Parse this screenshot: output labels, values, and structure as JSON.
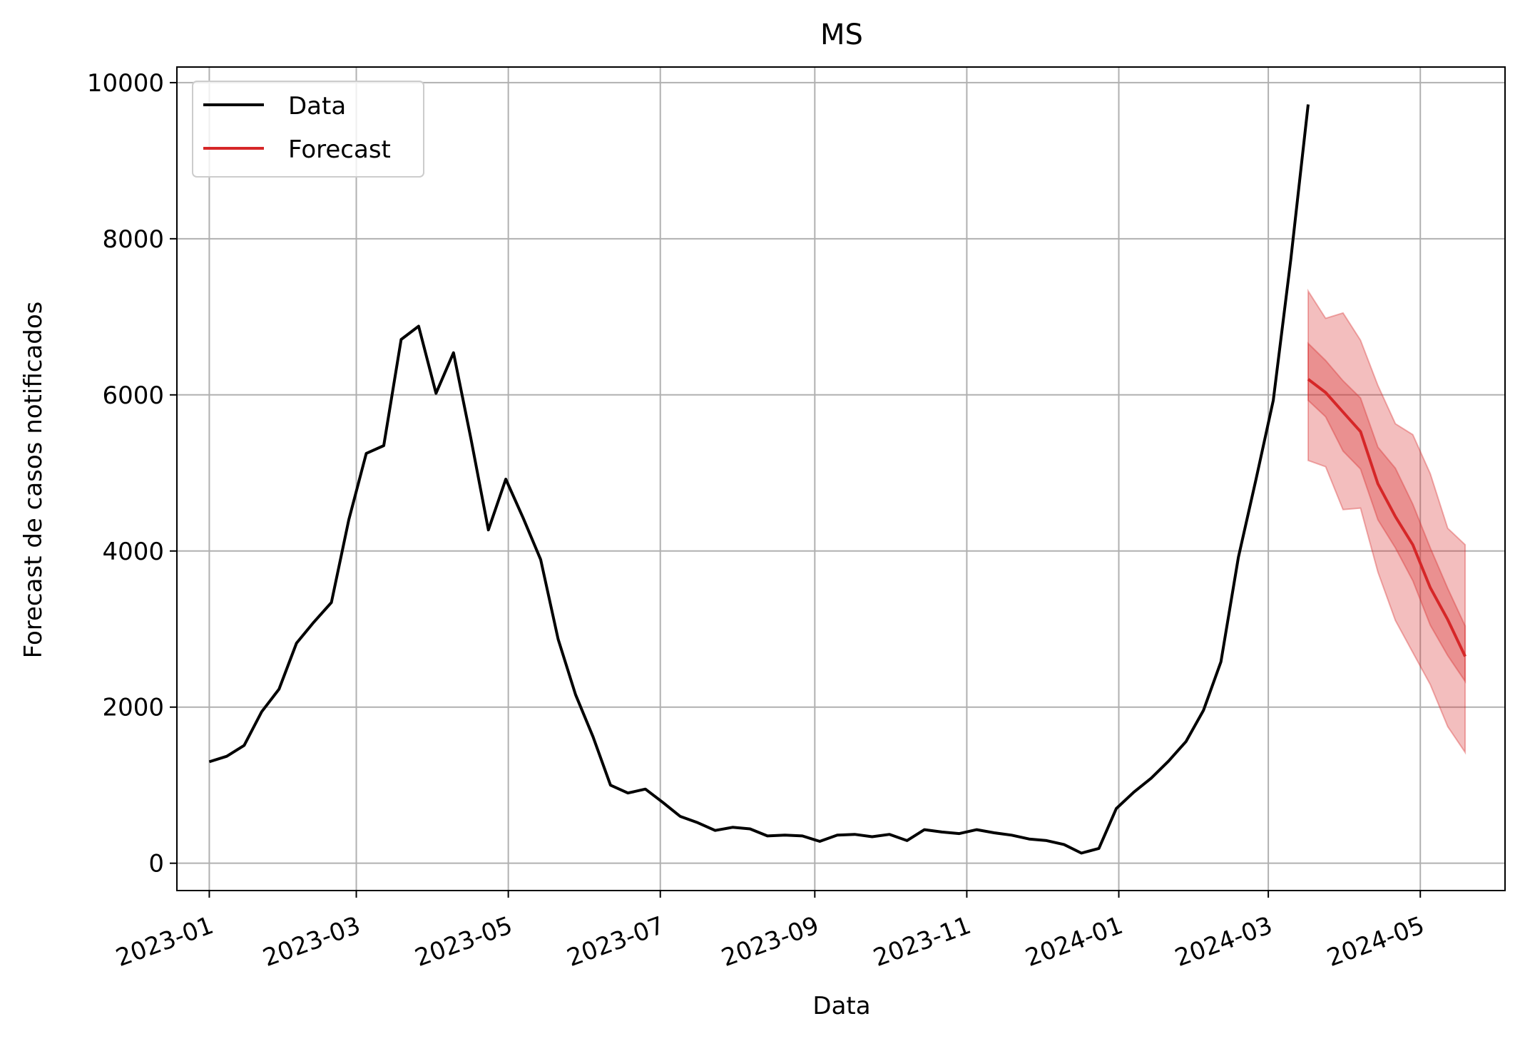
{
  "chart_data": {
    "type": "line",
    "title": "MS",
    "xlabel": "Data",
    "ylabel": "Forecast de casos notificados",
    "xlim": [
      "2022-12-19",
      "2024-06-04"
    ],
    "ylim": [
      -350,
      10200
    ],
    "x_ticks": [
      "2023-01",
      "2023-03",
      "2023-05",
      "2023-07",
      "2023-09",
      "2023-11",
      "2024-01",
      "2024-03",
      "2024-05"
    ],
    "y_ticks": [
      "0",
      "2000",
      "4000",
      "6000",
      "8000",
      "10000"
    ],
    "grid": true,
    "legend": {
      "placement": "top-left",
      "entries": [
        "Data",
        "Forecast"
      ]
    },
    "colors": {
      "data": "#000000",
      "forecast": "#d62728",
      "grid": "#b0b0b0"
    },
    "series": [
      {
        "name": "Data",
        "x": [
          "2023-01-01",
          "2023-01-08",
          "2023-01-15",
          "2023-01-22",
          "2023-01-29",
          "2023-02-05",
          "2023-02-12",
          "2023-02-19",
          "2023-02-26",
          "2023-03-05",
          "2023-03-12",
          "2023-03-19",
          "2023-03-26",
          "2023-04-02",
          "2023-04-09",
          "2023-04-16",
          "2023-04-23",
          "2023-04-30",
          "2023-05-07",
          "2023-05-14",
          "2023-05-21",
          "2023-05-28",
          "2023-06-04",
          "2023-06-11",
          "2023-06-18",
          "2023-06-25",
          "2023-07-02",
          "2023-07-09",
          "2023-07-16",
          "2023-07-23",
          "2023-07-30",
          "2023-08-06",
          "2023-08-13",
          "2023-08-20",
          "2023-08-27",
          "2023-09-03",
          "2023-09-10",
          "2023-09-17",
          "2023-09-24",
          "2023-10-01",
          "2023-10-08",
          "2023-10-15",
          "2023-10-22",
          "2023-10-29",
          "2023-11-05",
          "2023-11-12",
          "2023-11-19",
          "2023-11-26",
          "2023-12-03",
          "2023-12-10",
          "2023-12-17",
          "2023-12-24",
          "2023-12-31",
          "2024-01-07",
          "2024-01-14",
          "2024-01-21",
          "2024-01-28",
          "2024-02-04",
          "2024-02-11",
          "2024-02-18",
          "2024-02-25",
          "2024-03-03",
          "2024-03-10",
          "2024-03-17"
        ],
        "values": [
          1300,
          1370,
          1510,
          1940,
          2230,
          2820,
          3090,
          3340,
          4400,
          5250,
          5350,
          6710,
          6880,
          6020,
          6540,
          5440,
          4270,
          4920,
          4420,
          3890,
          2870,
          2160,
          1620,
          1000,
          900,
          950,
          780,
          600,
          520,
          420,
          460,
          440,
          350,
          360,
          350,
          280,
          360,
          370,
          340,
          370,
          290,
          430,
          400,
          380,
          430,
          390,
          360,
          310,
          290,
          240,
          130,
          190,
          700,
          910,
          1090,
          1310,
          1560,
          1960,
          2580,
          3920,
          4910,
          5930,
          7730,
          9720
        ]
      },
      {
        "name": "Forecast",
        "x": [
          "2024-03-17",
          "2024-03-24",
          "2024-03-31",
          "2024-04-07",
          "2024-04-14",
          "2024-04-21",
          "2024-04-28",
          "2024-05-05",
          "2024-05-12",
          "2024-05-19"
        ],
        "values": [
          6200,
          6030,
          5780,
          5530,
          4860,
          4440,
          4080,
          3530,
          3120,
          2650
        ],
        "inner_upper": [
          6660,
          6440,
          6180,
          5960,
          5330,
          5060,
          4600,
          4040,
          3520,
          3040
        ],
        "inner_lower": [
          5930,
          5720,
          5280,
          5050,
          4400,
          4040,
          3620,
          3050,
          2660,
          2330
        ],
        "outer_upper": [
          7330,
          6980,
          7050,
          6700,
          6120,
          5630,
          5490,
          4990,
          4290,
          4080
        ],
        "outer_lower": [
          5160,
          5080,
          4530,
          4550,
          3730,
          3110,
          2700,
          2290,
          1750,
          1420
        ]
      }
    ]
  }
}
